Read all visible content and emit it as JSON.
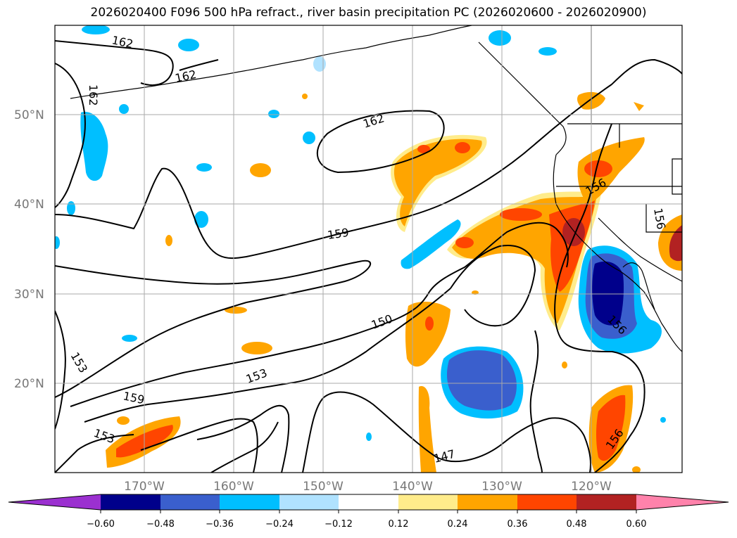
{
  "title": "2026020400 F096 500 hPa refract., river basin precipitation PC (2026020600 - 2026020900)",
  "lat_labels": [
    "50°N",
    "40°N",
    "30°N",
    "20°N"
  ],
  "lon_labels": [
    "170°W",
    "160°W",
    "150°W",
    "140°W",
    "130°W",
    "120°W"
  ],
  "contour_labels": [
    "162",
    "162",
    "162",
    "162",
    "159",
    "159",
    "156",
    "156",
    "156",
    "156",
    "153",
    "153",
    "153",
    "150",
    "147"
  ],
  "colorbar": {
    "ticks": [
      "−0.60",
      "−0.48",
      "−0.36",
      "−0.24",
      "−0.12",
      "0.12",
      "0.24",
      "0.36",
      "0.48",
      "0.60"
    ],
    "colors": [
      "#9b30d0",
      "#00008b",
      "#3a5fcd",
      "#00bfff",
      "#b0e2ff",
      "#ffffff",
      "#ffec8b",
      "#ffa500",
      "#ff4500",
      "#b22222",
      "#ff82ab"
    ]
  }
}
